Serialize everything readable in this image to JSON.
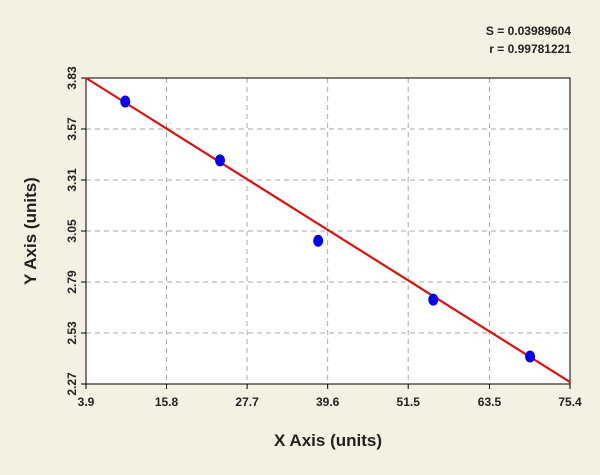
{
  "chart_data": {
    "type": "scatter",
    "x_label": "X Axis (units)",
    "y_label": "Y Axis (units)",
    "annotations": [
      "S = 0.03989604",
      "r = 0.99781221"
    ],
    "xlim": [
      3.9,
      75.4
    ],
    "xticks": [
      3.9,
      15.8,
      27.7,
      39.6,
      51.5,
      63.5,
      75.4
    ],
    "ylim": [
      2.27,
      3.83
    ],
    "yticks": [
      2.27,
      2.53,
      2.79,
      3.05,
      3.31,
      3.57,
      3.83
    ],
    "grid": true,
    "series": [
      {
        "color": "#0000ee",
        "x": [
          9.7,
          23.7,
          38.2,
          55.2,
          69.5
        ],
        "values": [
          3.71,
          3.41,
          3.0,
          2.7,
          2.41
        ]
      }
    ],
    "fit": {
      "color": "#e01010",
      "x": [
        3.9,
        75.4
      ],
      "values": [
        3.83,
        2.28
      ]
    }
  }
}
